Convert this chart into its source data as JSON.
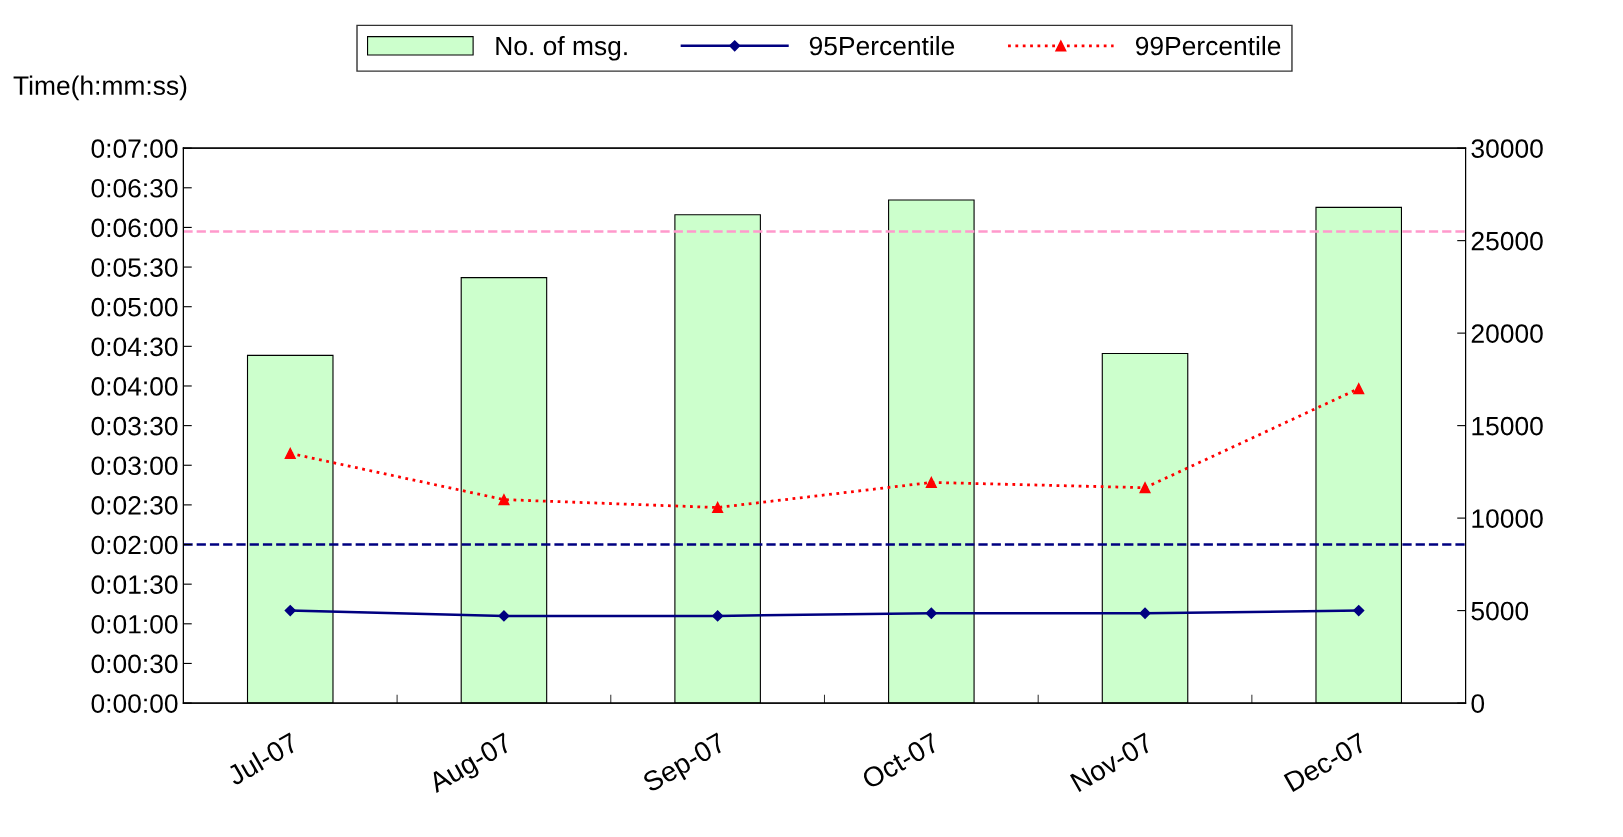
{
  "chart_data": {
    "type": "line",
    "ylabel": "Time(h:mm:ss)",
    "categories": [
      "Jul-07",
      "Aug-07",
      "Sep-07",
      "Oct-07",
      "Nov-07",
      "Dec-07"
    ],
    "series": [
      {
        "name": "No. of msg.",
        "type": "bar",
        "axis": "y2",
        "color": "#ccffcc",
        "values": [
          18800,
          23000,
          26400,
          27200,
          18900,
          26800
        ]
      },
      {
        "name": "95Percentile",
        "color": "#000080",
        "marker": "diamond",
        "line_style": "solid",
        "values": [
          70,
          66,
          66,
          68,
          68,
          70
        ]
      },
      {
        "name": "99Percentile",
        "color": "#ff0000",
        "marker": "triangle",
        "line_style": "dotted",
        "values": [
          189,
          154,
          148,
          167,
          163,
          238
        ]
      }
    ],
    "ylim": [
      0,
      420
    ],
    "yticks": [
      {
        "value": 0,
        "label": "0:00:00"
      },
      {
        "value": 30,
        "label": "0:00:30"
      },
      {
        "value": 60,
        "label": "0:01:00"
      },
      {
        "value": 90,
        "label": "0:01:30"
      },
      {
        "value": 120,
        "label": "0:02:00"
      },
      {
        "value": 150,
        "label": "0:02:30"
      },
      {
        "value": 180,
        "label": "0:03:00"
      },
      {
        "value": 210,
        "label": "0:03:30"
      },
      {
        "value": 240,
        "label": "0:04:00"
      },
      {
        "value": 270,
        "label": "0:04:30"
      },
      {
        "value": 300,
        "label": "0:05:00"
      },
      {
        "value": 330,
        "label": "0:05:30"
      },
      {
        "value": 360,
        "label": "0:06:00"
      },
      {
        "value": 390,
        "label": "0:06:30"
      },
      {
        "value": 420,
        "label": "0:07:00"
      }
    ],
    "y2lim": [
      0,
      30000
    ],
    "y2ticks": [
      0,
      5000,
      10000,
      15000,
      20000,
      25000,
      30000
    ],
    "ref_lines": [
      {
        "axis": "y2",
        "value": 25500,
        "color": "#ff99cc",
        "line_style": "dashed"
      },
      {
        "axis": "y",
        "value": 120,
        "color": "#000080",
        "line_style": "dashed"
      }
    ],
    "grid": false,
    "legend": "top"
  }
}
